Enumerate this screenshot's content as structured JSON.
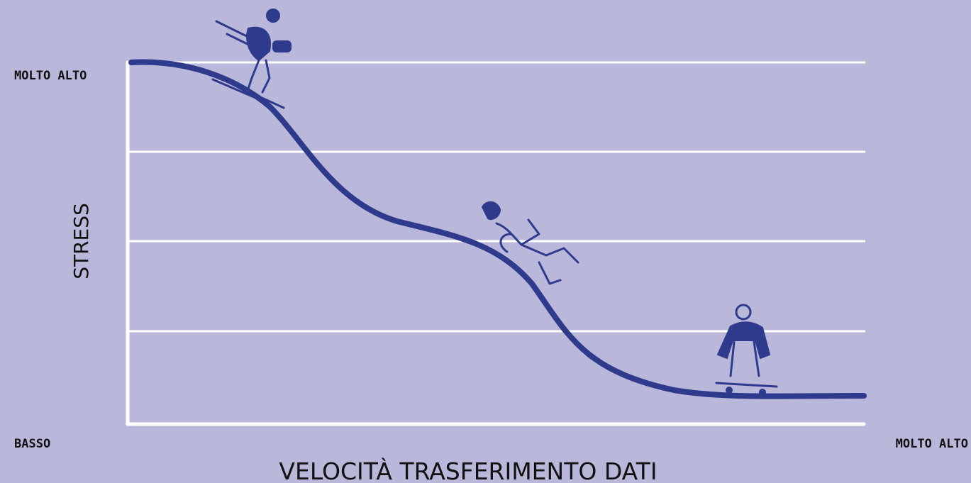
{
  "y_axis": {
    "title": "STRESS",
    "high_label": "MOLTO ALTO"
  },
  "x_axis": {
    "title": "VELOCITÀ TRASFERIMENTO DATI",
    "low_label": "BASSO",
    "high_label": "MOLTO ALTO"
  }
}
